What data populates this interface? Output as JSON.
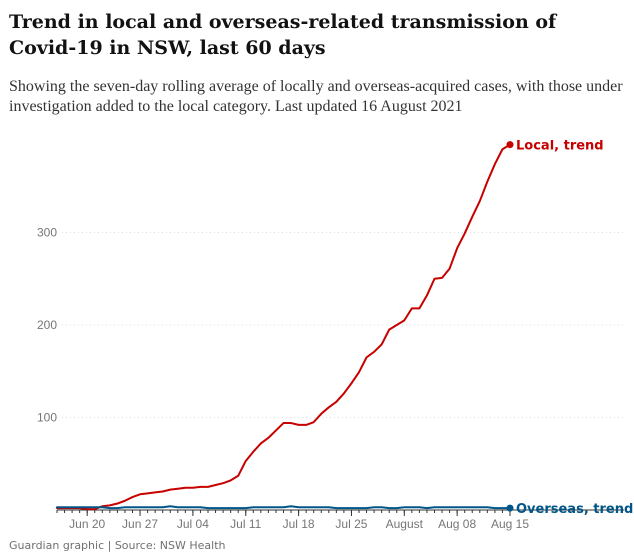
{
  "header": {
    "title": "Trend in local and overseas-related transmission of Covid-19 in NSW, last 60 days",
    "subtitle": "Showing the seven-day rolling average of locally and overseas-acquired cases, with those under investigation added to the local category. Last updated 16 August 2021"
  },
  "footer": {
    "source": "Guardian graphic | Source: NSW Health"
  },
  "colors": {
    "local": "#c70000",
    "overseas": "#005689",
    "gridline": "#dcdcdc",
    "axis": "#333333"
  },
  "chart_data": {
    "type": "line",
    "title": "Trend in local and overseas-related transmission of Covid-19 in NSW, last 60 days",
    "xlabel": "",
    "ylabel": "",
    "xlim": [
      0,
      60
    ],
    "ylim": [
      0,
      400
    ],
    "grid": true,
    "y_ticks": [
      {
        "value": 100,
        "label": "100"
      },
      {
        "value": 200,
        "label": "200"
      },
      {
        "value": 300,
        "label": "300"
      }
    ],
    "x_ticks": [
      {
        "day": 4,
        "label": "Jun 20"
      },
      {
        "day": 11,
        "label": "Jun 27"
      },
      {
        "day": 18,
        "label": "Jul 04"
      },
      {
        "day": 25,
        "label": "Jul 11"
      },
      {
        "day": 32,
        "label": "Jul 18"
      },
      {
        "day": 39,
        "label": "Jul 25"
      },
      {
        "day": 46,
        "label": "August"
      },
      {
        "day": 53,
        "label": "Aug 08"
      },
      {
        "day": 60,
        "label": "Aug 15"
      }
    ],
    "x": [
      0,
      1,
      2,
      3,
      4,
      5,
      6,
      7,
      8,
      9,
      10,
      11,
      12,
      13,
      14,
      15,
      16,
      17,
      18,
      19,
      20,
      21,
      22,
      23,
      24,
      25,
      26,
      27,
      28,
      29,
      30,
      31,
      32,
      33,
      34,
      35,
      36,
      37,
      38,
      39,
      40,
      41,
      42,
      43,
      44,
      45,
      46,
      47,
      48,
      49,
      50,
      51,
      52,
      53,
      54,
      55,
      56,
      57,
      58,
      59,
      60
    ],
    "series": [
      {
        "name": "Local",
        "label": "Local, trend",
        "values": [
          2,
          2,
          2,
          2,
          1,
          1,
          4,
          5,
          7,
          10,
          14,
          17,
          18,
          19,
          20,
          22,
          23,
          24,
          24,
          25,
          25,
          27,
          29,
          32,
          37,
          53,
          63,
          72,
          78,
          86,
          94,
          94,
          92,
          92,
          95,
          104,
          111,
          117,
          126,
          137,
          149,
          165,
          171,
          179,
          195,
          200,
          205,
          218,
          218,
          232,
          250,
          251,
          261,
          283,
          299,
          317,
          334,
          355,
          374,
          390,
          395
        ],
        "end_value": 395
      },
      {
        "name": "Overseas",
        "label": "Overseas, trend",
        "values": [
          3,
          3,
          3,
          3,
          3,
          3,
          3,
          2,
          2,
          3,
          3,
          3,
          3,
          3,
          3,
          4,
          3,
          3,
          3,
          3,
          2,
          2,
          2,
          2,
          2,
          2,
          3,
          3,
          3,
          3,
          3,
          4,
          3,
          3,
          3,
          3,
          3,
          2,
          2,
          2,
          2,
          2,
          3,
          3,
          2,
          2,
          3,
          3,
          3,
          2,
          3,
          3,
          3,
          3,
          3,
          3,
          3,
          3,
          2,
          2,
          2
        ],
        "end_value": 2
      }
    ]
  }
}
